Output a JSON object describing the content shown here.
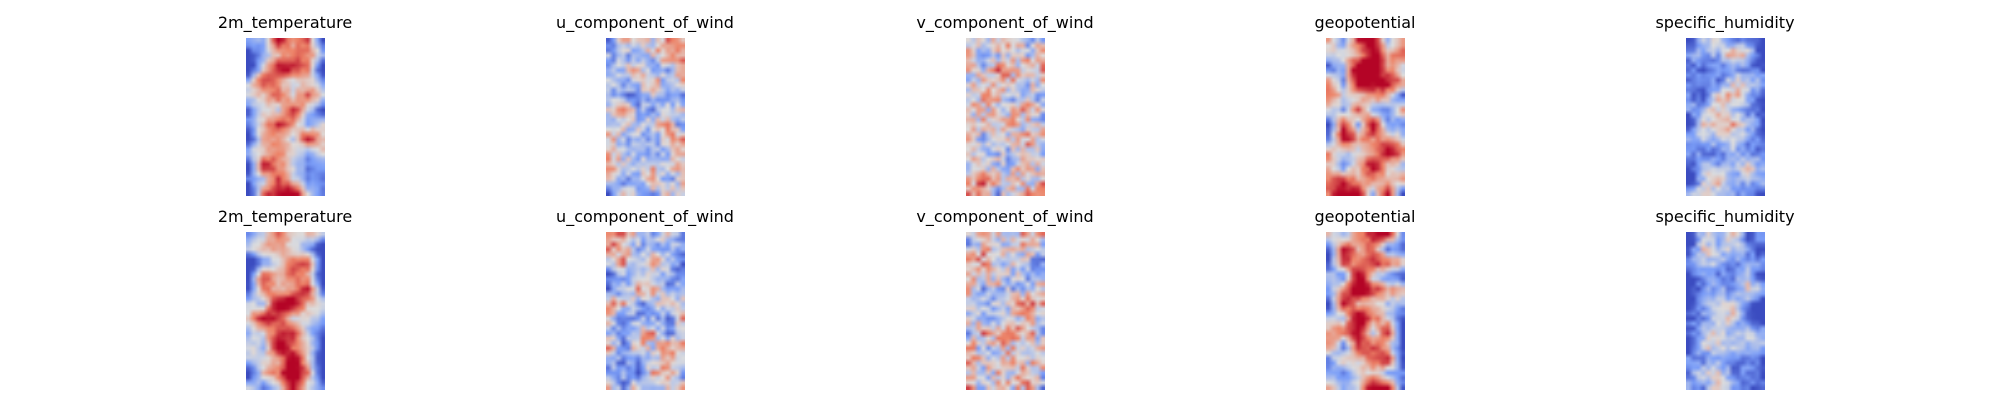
{
  "chart_data": [
    {
      "type": "heatmap",
      "title": "2m_temperature",
      "colormap": "coolwarm",
      "axes": "off",
      "row": 1,
      "col": 1
    },
    {
      "type": "heatmap",
      "title": "u_component_of_wind",
      "colormap": "coolwarm",
      "axes": "off",
      "row": 1,
      "col": 2
    },
    {
      "type": "heatmap",
      "title": "v_component_of_wind",
      "colormap": "coolwarm",
      "axes": "off",
      "row": 1,
      "col": 3
    },
    {
      "type": "heatmap",
      "title": "geopotential",
      "colormap": "coolwarm",
      "axes": "off",
      "row": 1,
      "col": 4
    },
    {
      "type": "heatmap",
      "title": "specific_humidity",
      "colormap": "coolwarm",
      "axes": "off",
      "row": 1,
      "col": 5
    },
    {
      "type": "heatmap",
      "title": "2m_temperature",
      "colormap": "coolwarm",
      "axes": "off",
      "row": 2,
      "col": 1
    },
    {
      "type": "heatmap",
      "title": "u_component_of_wind",
      "colormap": "coolwarm",
      "axes": "off",
      "row": 2,
      "col": 2
    },
    {
      "type": "heatmap",
      "title": "v_component_of_wind",
      "colormap": "coolwarm",
      "axes": "off",
      "row": 2,
      "col": 3
    },
    {
      "type": "heatmap",
      "title": "geopotential",
      "colormap": "coolwarm",
      "axes": "off",
      "row": 2,
      "col": 4
    },
    {
      "type": "heatmap",
      "title": "specific_humidity",
      "colormap": "coolwarm",
      "axes": "off",
      "row": 2,
      "col": 5
    }
  ],
  "colors": {
    "cold": "#3b4cc0",
    "neutral": "#dddddd",
    "warm": "#b40426"
  }
}
